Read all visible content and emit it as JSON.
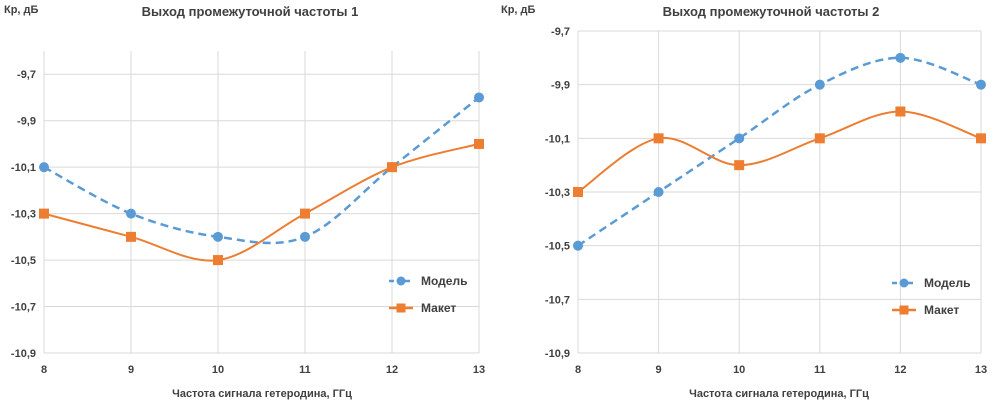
{
  "colors": {
    "model": "#5B9BD5",
    "maket": "#ED7D31",
    "grid": "#D9D9D9",
    "text": "#404040"
  },
  "chart_data": [
    {
      "type": "line",
      "title": "Выход  промежуточной частоты 1",
      "ylabel": "Кр, дБ",
      "xlabel": "Частота сигнала гетеродина, ГГц",
      "x": [
        8,
        9,
        10,
        11,
        12,
        13
      ],
      "x_tick_labels": [
        "8",
        "9",
        "10",
        "11",
        "12",
        "13"
      ],
      "ylim": [
        -10.9,
        -9.6
      ],
      "y_ticks": [
        -9.7,
        -9.9,
        -10.1,
        -10.3,
        -10.5,
        -10.7,
        -10.9
      ],
      "y_tick_labels": [
        "-9,7",
        "-9,9",
        "-10,1",
        "-10,3",
        "-10,5",
        "-10,7",
        "-10,9"
      ],
      "grid": true,
      "legend_position": "bottom-right",
      "series": [
        {
          "name": "Модель",
          "values": [
            -10.1,
            -10.3,
            -10.4,
            -10.4,
            -10.1,
            -9.8
          ],
          "style": "dashed",
          "marker": "circle"
        },
        {
          "name": "Макет",
          "values": [
            -10.3,
            -10.4,
            -10.5,
            -10.3,
            -10.1,
            -10.0
          ],
          "style": "solid",
          "marker": "square"
        }
      ]
    },
    {
      "type": "line",
      "title": "Выход промежуточной частоты 2",
      "ylabel": "Кр, дБ",
      "xlabel": "Частота сигнала гетеродина, ГГц",
      "x": [
        8,
        9,
        10,
        11,
        12,
        13
      ],
      "x_tick_labels": [
        "8",
        "9",
        "10",
        "11",
        "12",
        "13"
      ],
      "ylim": [
        -10.9,
        -9.7
      ],
      "y_ticks": [
        -9.7,
        -9.9,
        -10.1,
        -10.3,
        -10.5,
        -10.7,
        -10.9
      ],
      "y_tick_labels": [
        "-9,7",
        "-9,9",
        "-10,1",
        "-10,3",
        "-10,5",
        "-10,7",
        "-10,9"
      ],
      "grid": true,
      "legend_position": "bottom-right",
      "series": [
        {
          "name": "Модель",
          "values": [
            -10.5,
            -10.3,
            -10.1,
            -9.9,
            -9.8,
            -9.9
          ],
          "style": "dashed",
          "marker": "circle"
        },
        {
          "name": "Макет",
          "values": [
            -10.3,
            -10.1,
            -10.2,
            -10.1,
            -10.0,
            -10.1
          ],
          "style": "solid",
          "marker": "square"
        }
      ]
    }
  ]
}
